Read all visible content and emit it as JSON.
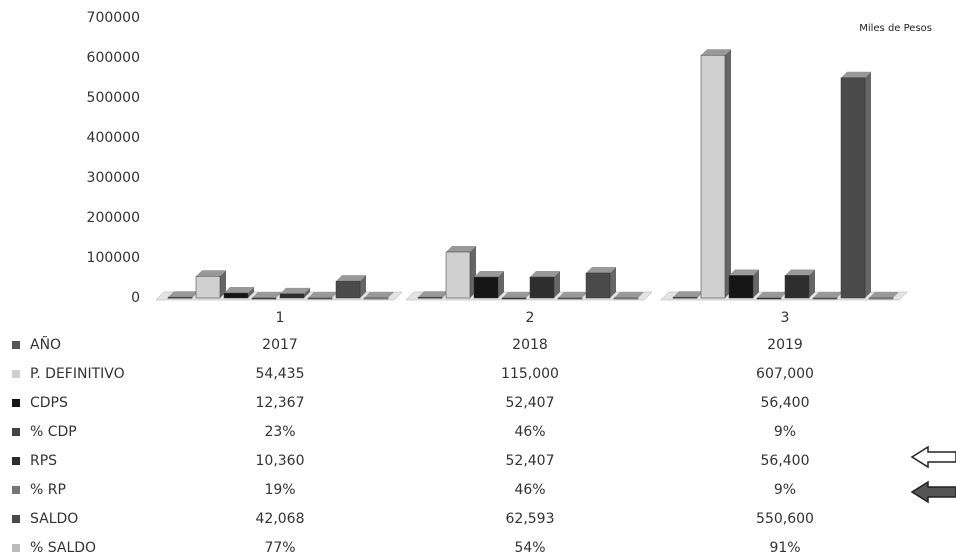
{
  "chart_data": {
    "type": "bar",
    "annotation": "Miles de Pesos",
    "categories": [
      "1",
      "2",
      "3"
    ],
    "ylim": [
      0,
      700000
    ],
    "yticks": [
      0,
      100000,
      200000,
      300000,
      400000,
      500000,
      600000,
      700000
    ],
    "series": [
      {
        "name": "AÑO",
        "color": "#555555",
        "values": [
          2017,
          2018,
          2019
        ]
      },
      {
        "name": "P. DEFINITIVO",
        "color": "#d0d0d0",
        "values": [
          54435,
          115000,
          607000
        ],
        "value_labels": [
          "54,435",
          "115,000",
          "607,000"
        ]
      },
      {
        "name": "CDPS",
        "color": "#151515",
        "values": [
          12367,
          52407,
          56400
        ],
        "value_labels": [
          "12,367",
          "52,407",
          "56,400"
        ]
      },
      {
        "name": "% CDP",
        "color": "#444444",
        "values": [
          23,
          46,
          9
        ],
        "value_labels": [
          "23%",
          "46%",
          "9%"
        ]
      },
      {
        "name": "RPS",
        "color": "#2e2e2e",
        "values": [
          10360,
          52407,
          56400
        ],
        "value_labels": [
          "10,360",
          "52,407",
          "56,400"
        ]
      },
      {
        "name": "% RP",
        "color": "#777777",
        "values": [
          19,
          46,
          9
        ],
        "value_labels": [
          "19%",
          "46%",
          "9%"
        ]
      },
      {
        "name": "SALDO",
        "color": "#4a4a4a",
        "values": [
          42068,
          62593,
          550600
        ],
        "value_labels": [
          "42,068",
          "62,593",
          "550,600"
        ]
      },
      {
        "name": "% SALDO",
        "color": "#bdbdbd",
        "values": [
          77,
          54,
          91
        ],
        "value_labels": [
          "77%",
          "54%",
          "91%"
        ]
      }
    ]
  }
}
